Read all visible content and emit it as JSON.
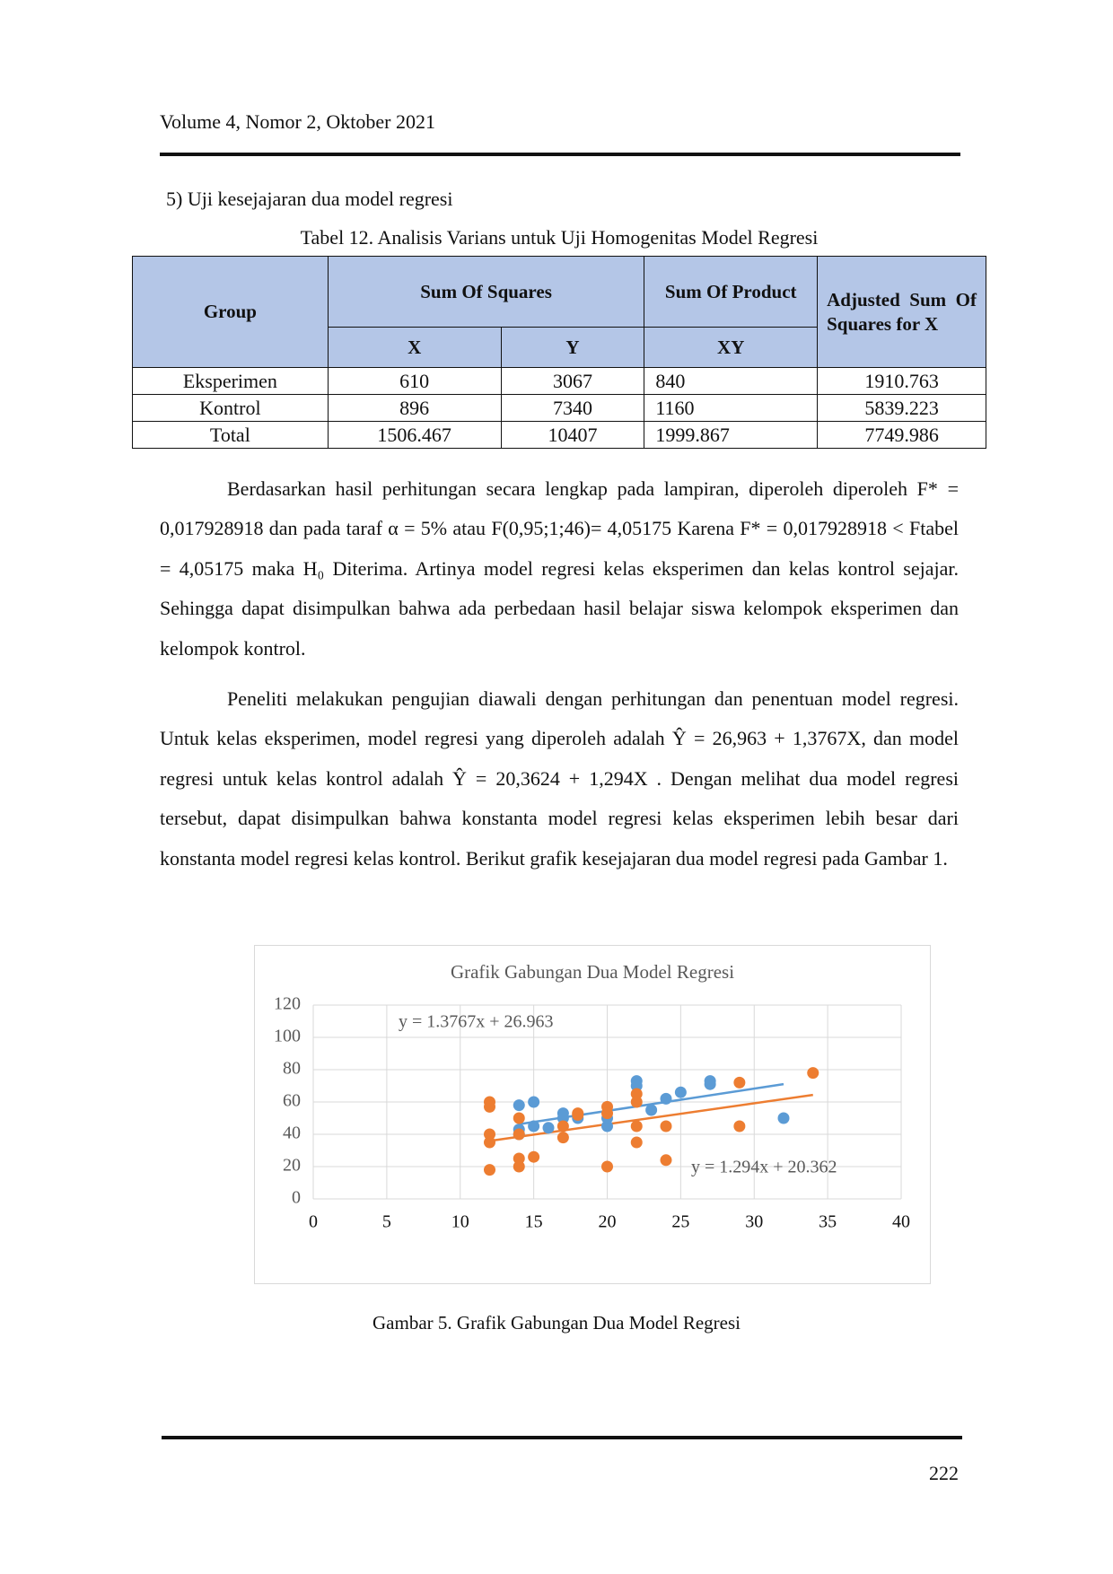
{
  "header": {
    "title": "Volume 4, Nomor 2, Oktober 2021"
  },
  "section": {
    "heading": "5)  Uji kesejajaran dua model regresi"
  },
  "table": {
    "caption": "Tabel 12. Analisis Varians untuk Uji Homogenitas Model Regresi",
    "head": {
      "group": "Group",
      "sum_of_squares": "Sum Of Squares",
      "sum_of_product": "Sum Of Product",
      "adjusted": "Adjusted Sum Of Squares for X",
      "x": "X",
      "y": "Y",
      "xy": "XY"
    },
    "rows": [
      [
        "Eksperimen",
        "610",
        "3067",
        "840",
        "1910.763"
      ],
      [
        "Kontrol",
        "896",
        "7340",
        "1160",
        "5839.223"
      ],
      [
        "Total",
        "1506.467",
        "10407",
        "1999.867",
        "7749.986"
      ]
    ]
  },
  "paragraphs": [
    "Berdasarkan hasil perhitungan secara lengkap pada lampiran, diperoleh diperoleh F* = 0,017928918 dan pada taraf α = 5% atau F(0,95;1;46)= 4,05175 Karena F* = 0,017928918 < Ftabel = 4,05175 maka H₀ Diterima. Artinya model regresi kelas eksperimen dan kelas kontrol sejajar. Sehingga dapat disimpulkan bahwa ada perbedaan hasil belajar siswa kelompok eksperimen dan kelompok kontrol.",
    "Peneliti melakukan pengujian diawali dengan perhitungan dan penentuan model regresi.  Untuk kelas eksperimen, model regresi yang diperoleh adalah Ŷ = 26,963 + 1,3767X, dan model regresi untuk kelas kontrol adalah Ŷ = 20,3624 + 1,294X . Dengan melihat dua model regresi tersebut, dapat disimpulkan bahwa konstanta model regresi kelas eksperimen lebih besar dari konstanta model regresi kelas kontrol. Berikut grafik kesejajaran dua model regresi pada Gambar 1."
  ],
  "chart_data": {
    "type": "scatter",
    "title": "Grafik Gabungan Dua Model Regresi",
    "xlim": [
      0,
      40
    ],
    "ylim": [
      0,
      120
    ],
    "xticks": [
      0,
      5,
      10,
      15,
      20,
      25,
      30,
      35,
      40
    ],
    "yticks": [
      0,
      20,
      40,
      60,
      80,
      100,
      120
    ],
    "grid": true,
    "series": [
      {
        "color": "#5B9BD5",
        "x": [
          14,
          15,
          14,
          15,
          14,
          16,
          17,
          17,
          18,
          20,
          20,
          22,
          22,
          23,
          24,
          25,
          27,
          27,
          32
        ],
        "values": [
          58,
          60,
          43,
          45,
          40,
          44,
          50,
          53,
          50,
          45,
          50,
          73,
          70,
          55,
          62,
          66,
          73,
          71,
          50
        ],
        "trendline": {
          "slope": 1.3767,
          "intercept": 26.963,
          "label": "y = 1.3767x + 26.963"
        }
      },
      {
        "color": "#ED7D31",
        "x": [
          12,
          12,
          12,
          12,
          12,
          14,
          14,
          14,
          14,
          15,
          17,
          17,
          18,
          18,
          20,
          20,
          20,
          22,
          22,
          22,
          22,
          24,
          24,
          29,
          29,
          34
        ],
        "values": [
          18,
          60,
          57,
          40,
          35,
          50,
          25,
          20,
          40,
          26,
          38,
          45,
          53,
          52,
          57,
          53,
          20,
          65,
          60,
          45,
          35,
          45,
          24,
          45,
          72,
          78
        ],
        "trendline": {
          "slope": 1.294,
          "intercept": 20.362,
          "label": "y = 1.294x + 20.362"
        }
      }
    ]
  },
  "figure": {
    "caption": "Gambar 5. Grafik Gabungan Dua Model Regresi"
  },
  "footer": {
    "page": "222"
  }
}
